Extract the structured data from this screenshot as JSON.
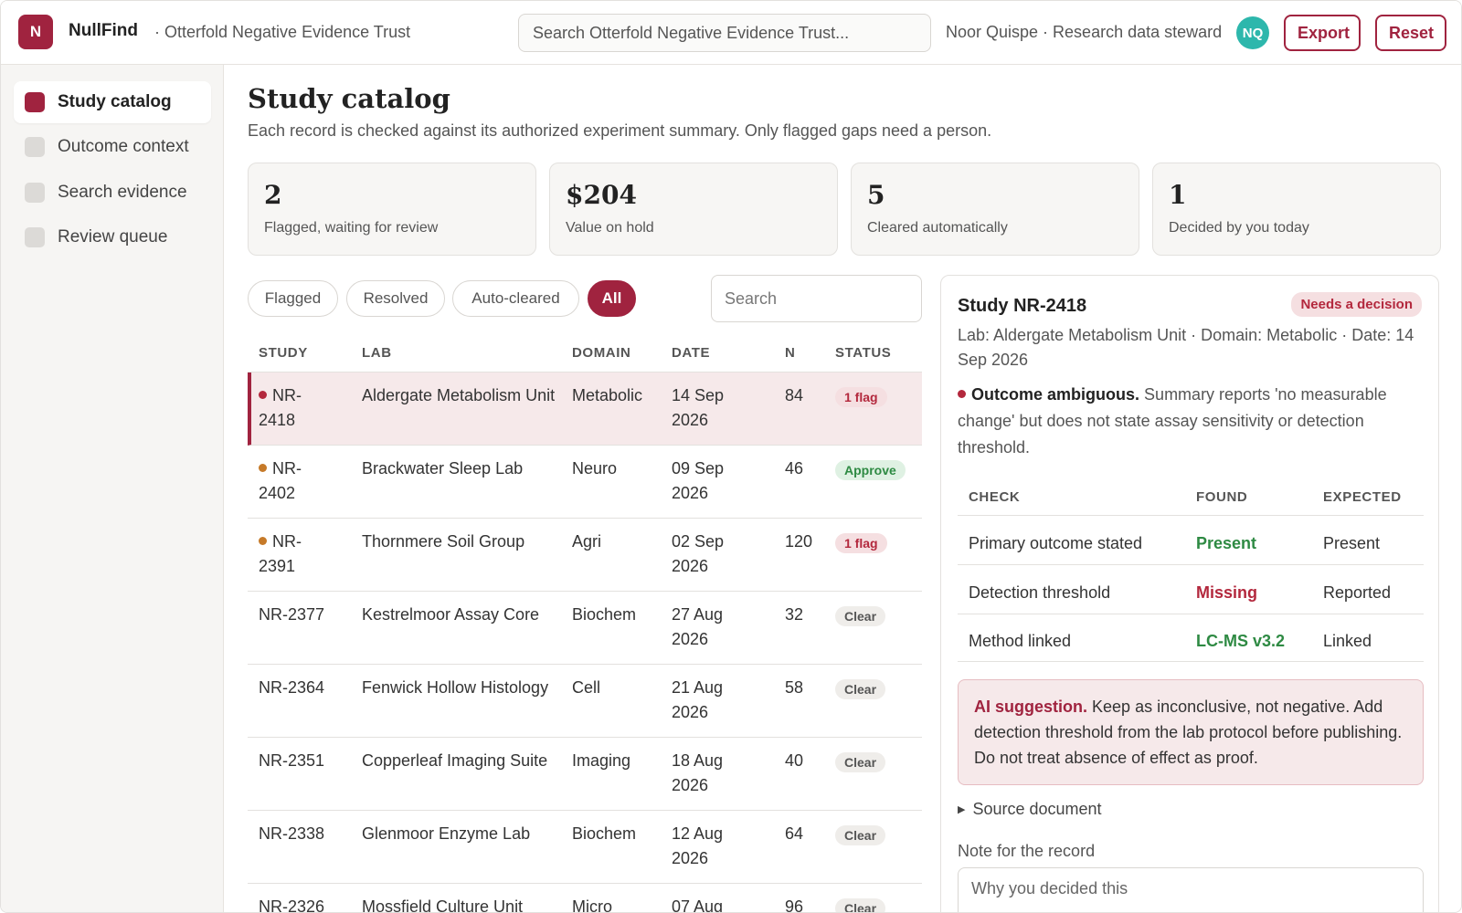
{
  "app": {
    "logo_letter": "N",
    "name": "NullFind",
    "org": "· Otterfold Negative Evidence Trust",
    "search_placeholder": "Search Otterfold Negative Evidence Trust...",
    "user": "Noor Quispe · Research data steward",
    "avatar": "NQ",
    "export_label": "Export",
    "reset_label": "Reset",
    "accent": "#a0233f"
  },
  "sidebar": {
    "items": [
      {
        "label": "Study catalog",
        "active": true
      },
      {
        "label": "Outcome context"
      },
      {
        "label": "Search evidence"
      },
      {
        "label": "Review queue"
      }
    ]
  },
  "main": {
    "title": "Study catalog",
    "subtitle": "Each record is checked against its authorized experiment summary. Only flagged gaps need a person.",
    "stats": [
      {
        "value": "2",
        "label": "Flagged, waiting for review"
      },
      {
        "value": "$204",
        "label": "Value on hold"
      },
      {
        "value": "5",
        "label": "Cleared automatically"
      },
      {
        "value": "1",
        "label": "Decided by you today"
      }
    ],
    "filters": [
      "Flagged",
      "Resolved",
      "Auto-cleared",
      "All"
    ],
    "active_filter": "All",
    "table_search_placeholder": "Search"
  },
  "table": {
    "headers": [
      "STUDY",
      "LAB",
      "DOMAIN",
      "DATE",
      "N",
      "STATUS"
    ],
    "rows": [
      {
        "study": "NR-2418",
        "lab": "Aldergate Metabolism Unit",
        "domain": "Metabolic",
        "date": "14 Sep 2026",
        "n": "84",
        "status": "1 flag",
        "dot": "red"
      },
      {
        "study": "NR-2402",
        "lab": "Brackwater Sleep Lab",
        "domain": "Neuro",
        "date": "09 Sep 2026",
        "n": "46",
        "status": "Approve",
        "dot": "orange"
      },
      {
        "study": "NR-2391",
        "lab": "Thornmere Soil Group",
        "domain": "Agri",
        "date": "02 Sep 2026",
        "n": "120",
        "status": "1 flag",
        "dot": "orange"
      },
      {
        "study": "NR-2377",
        "lab": "Kestrelmoor Assay Core",
        "domain": "Biochem",
        "date": "27 Aug 2026",
        "n": "32",
        "status": "Clear"
      },
      {
        "study": "NR-2364",
        "lab": "Fenwick Hollow Histology",
        "domain": "Cell",
        "date": "21 Aug 2026",
        "n": "58",
        "status": "Clear"
      },
      {
        "study": "NR-2351",
        "lab": "Copperleaf Imaging Suite",
        "domain": "Imaging",
        "date": "18 Aug 2026",
        "n": "40",
        "status": "Clear"
      },
      {
        "study": "NR-2338",
        "lab": "Glenmoor Enzyme Lab",
        "domain": "Biochem",
        "date": "12 Aug 2026",
        "n": "64",
        "status": "Clear"
      },
      {
        "study": "NR-2326",
        "lab": "Mossfield Culture Unit",
        "domain": "Micro",
        "date": "07 Aug",
        "n": "96",
        "status": "Clear"
      }
    ]
  },
  "detail": {
    "title": "Study NR-2418",
    "badge": "Needs a decision",
    "meta": "Lab: Aldergate Metabolism Unit · Domain: Metabolic · Date: 14 Sep 2026",
    "finding_title": "Outcome ambiguous.",
    "finding_text": "Summary reports 'no measurable change' but does not state assay sensitivity or detection threshold.",
    "check_headers": [
      "CHECK",
      "FOUND",
      "EXPECTED"
    ],
    "checks": [
      {
        "check": "Primary outcome stated",
        "found": "Present",
        "expected": "Present",
        "ok": true
      },
      {
        "check": "Detection threshold",
        "found": "Missing",
        "expected": "Reported",
        "ok": false
      },
      {
        "check": "Method linked",
        "found": "LC-MS v3.2",
        "expected": "Linked",
        "ok": true
      }
    ],
    "ai_label": "AI suggestion.",
    "ai_text": "Keep as inconclusive, not negative. Add detection threshold from the lab protocol before publishing. Do not treat absence of effect as proof.",
    "source_label": "Source document",
    "note_label": "Note for the record",
    "note_placeholder": "Why you decided this"
  }
}
